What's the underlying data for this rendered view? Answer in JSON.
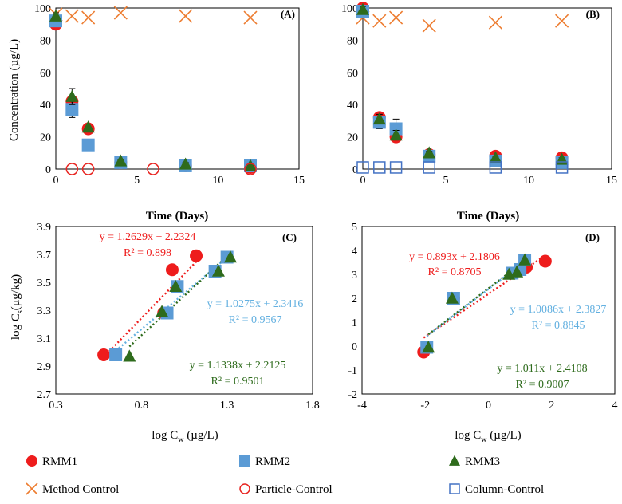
{
  "colors": {
    "rmm1": "#ee1c1c",
    "rmm2": "#5b9bd5",
    "rmm3": "#2e6b1c",
    "method_control": "#ed7d31",
    "particle_control": "#e8231f",
    "column_control": "#4472c4",
    "fit_rmm1": "#ee1c1c",
    "fit_rmm2": "#63b0e0",
    "fit_rmm3": "#2e6b1c"
  },
  "legend": [
    {
      "key": "rmm1",
      "label": "RMM1",
      "marker": "filled-circle"
    },
    {
      "key": "rmm2",
      "label": "RMM2",
      "marker": "filled-square"
    },
    {
      "key": "rmm3",
      "label": "RMM3",
      "marker": "filled-triangle"
    },
    {
      "key": "method_control",
      "label": "Method Control",
      "marker": "x"
    },
    {
      "key": "particle_control",
      "label": "Particle-Control",
      "marker": "open-circle"
    },
    {
      "key": "column_control",
      "label": "Column-Control",
      "marker": "open-square"
    }
  ],
  "chart_data": [
    {
      "id": "A",
      "panel_label": "(A)",
      "type": "scatter",
      "xlabel": "Time (Days)",
      "ylabel": "Concentration (µg/L)",
      "xlim": [
        0,
        15
      ],
      "ylim": [
        0,
        100
      ],
      "xticks": [
        0,
        5,
        10,
        15
      ],
      "yticks": [
        0,
        20,
        40,
        60,
        80,
        100
      ],
      "tick_labels_x": [
        "0",
        "5",
        "10",
        "15"
      ],
      "tick_labels_y": [
        "0",
        "20",
        "40",
        "60",
        "80",
        "100"
      ],
      "series": [
        {
          "key": "method_control",
          "x": [
            0,
            1,
            2,
            4,
            8,
            12
          ],
          "y": [
            96,
            95,
            94,
            97,
            95,
            94
          ]
        },
        {
          "key": "rmm1",
          "x": [
            0,
            1,
            2,
            4,
            8,
            12
          ],
          "y": [
            90,
            42,
            25,
            4,
            2,
            1
          ]
        },
        {
          "key": "rmm2",
          "x": [
            0,
            1,
            2,
            4,
            8,
            12
          ],
          "y": [
            92,
            37,
            15,
            4,
            2,
            2
          ],
          "err": [
            2,
            5,
            3,
            1,
            1,
            1
          ]
        },
        {
          "key": "rmm3",
          "x": [
            0,
            1,
            2,
            4,
            8,
            12
          ],
          "y": [
            95,
            45,
            26,
            5,
            3,
            2
          ],
          "err": [
            2,
            5,
            2,
            1,
            1,
            1
          ]
        },
        {
          "key": "particle_control",
          "x": [
            1,
            2,
            6,
            12
          ],
          "y": [
            0,
            0,
            0,
            0
          ]
        }
      ]
    },
    {
      "id": "B",
      "panel_label": "(B)",
      "type": "scatter",
      "xlabel": "Time (Days)",
      "ylabel": "",
      "xlim": [
        0,
        15
      ],
      "ylim": [
        0,
        100
      ],
      "xticks": [
        0,
        5,
        10,
        15
      ],
      "yticks": [
        0,
        20,
        40,
        60,
        80,
        100
      ],
      "tick_labels_x": [
        "0",
        "5",
        "10",
        "15"
      ],
      "tick_labels_y": [
        "0",
        "20",
        "40",
        "60",
        "80",
        "100"
      ],
      "series": [
        {
          "key": "method_control",
          "x": [
            0,
            1,
            2,
            4,
            8,
            12
          ],
          "y": [
            94,
            92,
            94,
            89,
            91,
            92
          ]
        },
        {
          "key": "rmm1",
          "x": [
            0,
            1,
            2,
            4,
            8,
            12
          ],
          "y": [
            100,
            32,
            20,
            9,
            8,
            7
          ]
        },
        {
          "key": "rmm2",
          "x": [
            0,
            1,
            2,
            4,
            8,
            12
          ],
          "y": [
            98,
            29,
            25,
            8,
            5,
            4
          ],
          "err": [
            2,
            4,
            6,
            1,
            1,
            1
          ]
        },
        {
          "key": "rmm3",
          "x": [
            0,
            1,
            2,
            4,
            8,
            12
          ],
          "y": [
            99,
            31,
            21,
            10,
            7,
            6
          ],
          "err": [
            2,
            3,
            3,
            1,
            1,
            1
          ]
        },
        {
          "key": "column_control",
          "x": [
            0,
            1,
            2,
            4,
            8,
            12
          ],
          "y": [
            1,
            1,
            1,
            1,
            1,
            1
          ]
        }
      ]
    },
    {
      "id": "C",
      "panel_label": "(C)",
      "type": "scatter",
      "xlabel_main": "log C",
      "xlabel_sub": "w",
      "xlabel_tail": " (µg/L)",
      "ylabel_main": "log C",
      "ylabel_sub": "s",
      "ylabel_tail": "(µg/kg)",
      "xlim": [
        0.3,
        1.8
      ],
      "ylim": [
        2.7,
        3.9
      ],
      "xticks": [
        0.3,
        0.8,
        1.3,
        1.8
      ],
      "yticks": [
        2.7,
        2.9,
        3.1,
        3.3,
        3.5,
        3.7,
        3.9
      ],
      "tick_labels_x": [
        "0.3",
        "0.8",
        "1.3",
        "1.8"
      ],
      "tick_labels_y": [
        "2.7",
        "2.9",
        "3.1",
        "3.3",
        "3.5",
        "3.7",
        "3.9"
      ],
      "series": [
        {
          "key": "rmm1",
          "x": [
            0.58,
            0.93,
            0.98,
            1.12
          ],
          "y": [
            2.98,
            3.28,
            3.59,
            3.69
          ]
        },
        {
          "key": "rmm2",
          "x": [
            0.65,
            0.95,
            1.01,
            1.23,
            1.3
          ],
          "y": [
            2.98,
            3.28,
            3.47,
            3.58,
            3.68
          ]
        },
        {
          "key": "rmm3",
          "x": [
            0.73,
            0.92,
            1.0,
            1.25,
            1.32
          ],
          "y": [
            2.97,
            3.29,
            3.47,
            3.58,
            3.68
          ]
        }
      ],
      "fits": [
        {
          "key": "fit_rmm1",
          "equation": "y = 1.2629x + 2.2324",
          "r2": "R² = 0.898",
          "x_range": [
            0.58,
            1.12
          ],
          "slope": 1.2629,
          "intercept": 2.2324
        },
        {
          "key": "fit_rmm2",
          "equation": "y = 1.0275x + 2.3416",
          "r2": "R² = 0.9567",
          "x_range": [
            0.65,
            1.3
          ],
          "slope": 1.0275,
          "intercept": 2.3416
        },
        {
          "key": "fit_rmm3",
          "equation": "y = 1.1338x + 2.2125",
          "r2": "R² = 0.9501",
          "x_range": [
            0.73,
            1.32
          ],
          "slope": 1.1338,
          "intercept": 2.2125
        }
      ]
    },
    {
      "id": "D",
      "panel_label": "(D)",
      "type": "scatter",
      "xlabel_main": "log C",
      "xlabel_sub": "w",
      "xlabel_tail": " (µg/L)",
      "xlim": [
        -4,
        4
      ],
      "ylim": [
        -2,
        5
      ],
      "xticks": [
        -4,
        -2,
        0,
        2,
        4
      ],
      "yticks": [
        -2,
        -1,
        0,
        1,
        2,
        3,
        4,
        5
      ],
      "tick_labels_x": [
        "-4",
        "-2",
        "0",
        "2",
        "4"
      ],
      "tick_labels_y": [
        "-2",
        "-1",
        "0",
        "1",
        "2",
        "3",
        "4",
        "5"
      ],
      "series": [
        {
          "key": "rmm1",
          "x": [
            -2.05,
            -1.1,
            1.2,
            1.8
          ],
          "y": [
            -0.25,
            2.0,
            3.3,
            3.55
          ]
        },
        {
          "key": "rmm2",
          "x": [
            -1.95,
            -1.1,
            0.75,
            1.0,
            1.15
          ],
          "y": [
            -0.05,
            2.0,
            3.05,
            3.2,
            3.6
          ]
        },
        {
          "key": "rmm3",
          "x": [
            -1.9,
            -1.15,
            0.65,
            0.9,
            1.15
          ],
          "y": [
            -0.05,
            2.0,
            3.0,
            3.1,
            3.6
          ]
        }
      ],
      "fits": [
        {
          "key": "fit_rmm1",
          "equation": "y = 0.893x + 2.1806",
          "r2": "R² = 0.8705",
          "x_range": [
            -2.05,
            1.8
          ],
          "slope": 0.893,
          "intercept": 2.1806
        },
        {
          "key": "fit_rmm2",
          "equation": "y = 1.0086x + 2.3827",
          "r2": "R² = 0.8845",
          "x_range": [
            -1.95,
            1.15
          ],
          "slope": 1.0086,
          "intercept": 2.3827
        },
        {
          "key": "fit_rmm3",
          "equation": "y = 1.011x + 2.4108",
          "r2": "R² = 0.9007",
          "x_range": [
            -1.9,
            1.15
          ],
          "slope": 1.011,
          "intercept": 2.4108
        }
      ]
    }
  ]
}
